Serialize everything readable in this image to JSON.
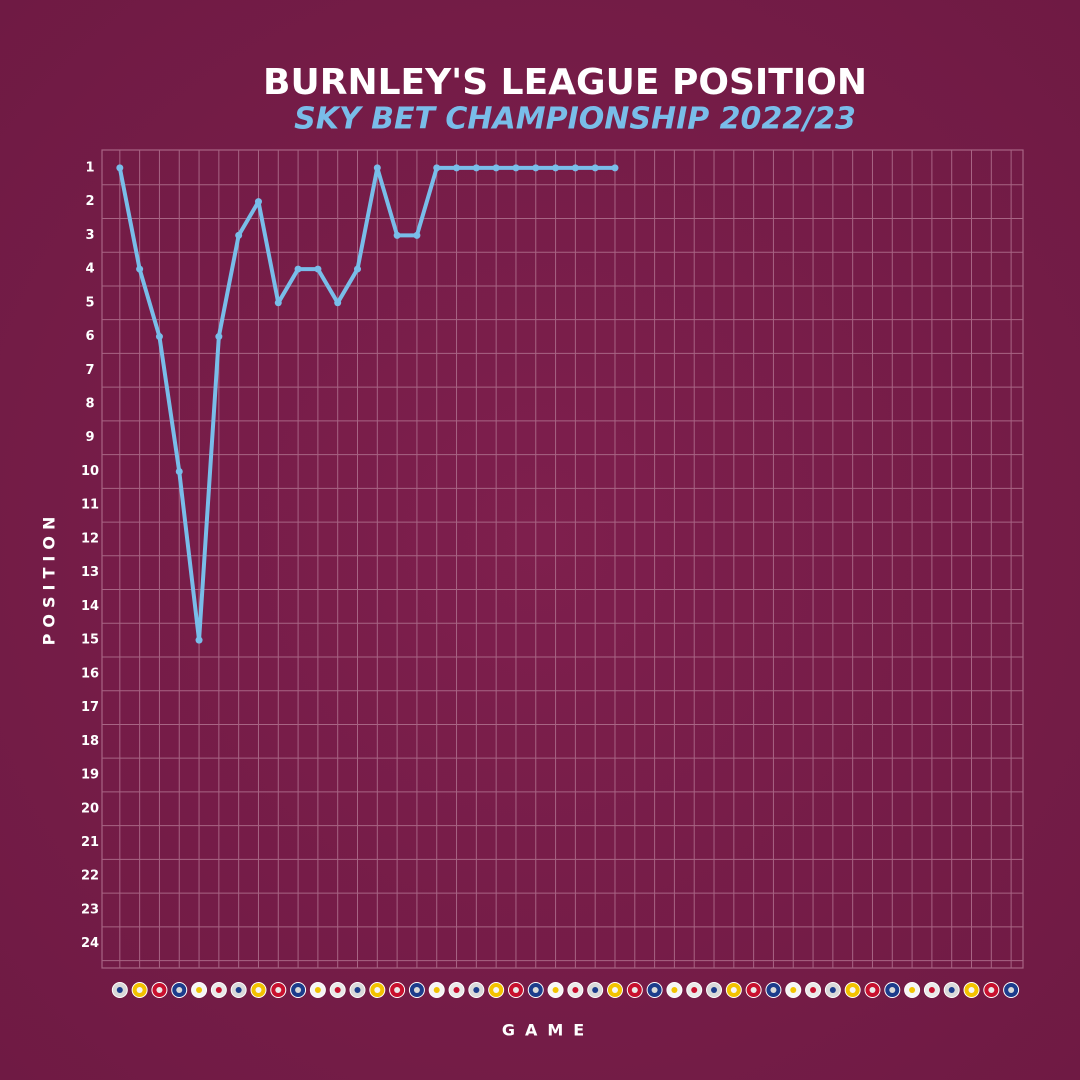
{
  "chart_data": {
    "type": "line",
    "title": "BURNLEY'S LEAGUE POSITION",
    "subtitle": "SKY BET CHAMPIONSHIP 2022/23",
    "y_label": "POSITION",
    "x_label": "GAME",
    "x": [
      1,
      2,
      3,
      4,
      5,
      6,
      7,
      8,
      9,
      10,
      11,
      12,
      13,
      14,
      15,
      16,
      17,
      18,
      19,
      20,
      21,
      22,
      23,
      24,
      25,
      26
    ],
    "series": [
      {
        "name": "Burnley",
        "color": "#79bde9",
        "values": [
          1,
          4,
          6,
          10,
          15,
          6,
          3,
          2,
          5,
          4,
          4,
          5,
          4,
          1,
          3,
          3,
          1,
          1,
          1,
          1,
          1,
          1,
          1,
          1,
          1,
          1
        ]
      }
    ],
    "xlim": [
      0.1,
      46.6
    ],
    "ylim": [
      0.47,
      24.72
    ],
    "y_inverted": true,
    "yticks": [
      1,
      2,
      3,
      4,
      5,
      6,
      7,
      8,
      9,
      10,
      11,
      12,
      13,
      14,
      15,
      16,
      17,
      18,
      19,
      20,
      21,
      22,
      23,
      24
    ],
    "grid": true
  }
}
